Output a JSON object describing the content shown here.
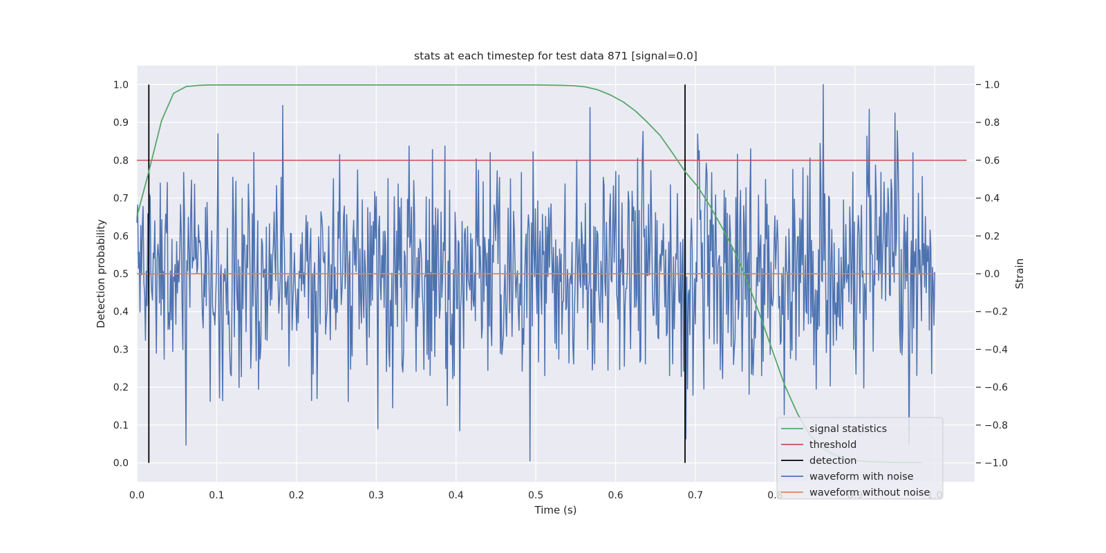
{
  "chart_data": {
    "type": "line",
    "title": "stats at each timestep for test data 871 [signal=0.0]",
    "xlabel": "Time (s)",
    "ylabel": "Detection probability",
    "ylabel_right": "Strain",
    "xlim": [
      0.0,
      1.05
    ],
    "ylim": [
      -0.05,
      1.05
    ],
    "ylim_right": [
      -1.1,
      1.1
    ],
    "xticks": [
      "0.0",
      "0.1",
      "0.2",
      "0.3",
      "0.4",
      "0.5",
      "0.6",
      "0.7",
      "0.8",
      "0.9",
      "1.0"
    ],
    "yticks": [
      "0.0",
      "0.1",
      "0.2",
      "0.3",
      "0.4",
      "0.5",
      "0.6",
      "0.7",
      "0.8",
      "0.9",
      "1.0"
    ],
    "yticks_right": [
      "−1.0",
      "−0.8",
      "−0.6",
      "−0.4",
      "−0.2",
      "0.0",
      "0.2",
      "0.4",
      "0.6",
      "0.8",
      "1.0"
    ],
    "grid": true,
    "legend_position": "lower-right",
    "series": [
      {
        "name": "signal statistics",
        "color": "#55a868",
        "axis": "left",
        "x": [
          0.0,
          0.015,
          0.031,
          0.046,
          0.062,
          0.078,
          0.093,
          0.109,
          0.125,
          0.2,
          0.3,
          0.4,
          0.5,
          0.531,
          0.547,
          0.562,
          0.578,
          0.593,
          0.609,
          0.625,
          0.64,
          0.656,
          0.671,
          0.687,
          0.703,
          0.718,
          0.734,
          0.75,
          0.765,
          0.781,
          0.796,
          0.812,
          0.828,
          0.843,
          0.859,
          0.875,
          0.89,
          0.906,
          0.921,
          0.937,
          0.953,
          0.968,
          0.984
        ],
        "y": [
          0.65,
          0.77,
          0.905,
          0.977,
          0.995,
          0.998,
          0.999,
          0.999,
          0.999,
          0.999,
          0.999,
          0.999,
          0.999,
          0.998,
          0.997,
          0.994,
          0.986,
          0.973,
          0.955,
          0.93,
          0.9,
          0.865,
          0.82,
          0.77,
          0.73,
          0.68,
          0.62,
          0.555,
          0.48,
          0.39,
          0.3,
          0.205,
          0.13,
          0.075,
          0.04,
          0.02,
          0.01,
          0.005,
          0.003,
          0.002,
          0.001,
          0.001,
          0.001
        ]
      },
      {
        "name": "threshold",
        "color": "#c44e52",
        "axis": "left",
        "x": [
          0.0,
          1.04
        ],
        "y": [
          0.8,
          0.8
        ]
      },
      {
        "name": "detection",
        "color": "#000000",
        "axis": "left",
        "segments": [
          {
            "x": 0.015,
            "y": [
              0.0,
              1.0
            ]
          },
          {
            "x": 0.687,
            "y": [
              0.0,
              1.0
            ]
          }
        ]
      },
      {
        "name": "waveform with noise",
        "color": "#4c72b0",
        "axis": "right",
        "x_range": [
          0.0,
          1.0
        ],
        "n_points": 1024,
        "y_range": [
          -0.99,
          1.0
        ],
        "description_values": "noise-like strain samples"
      },
      {
        "name": "waveform without noise",
        "color": "#dd8452",
        "axis": "right",
        "x": [
          0.0,
          1.0
        ],
        "y": [
          0.0,
          0.0
        ]
      }
    ]
  }
}
